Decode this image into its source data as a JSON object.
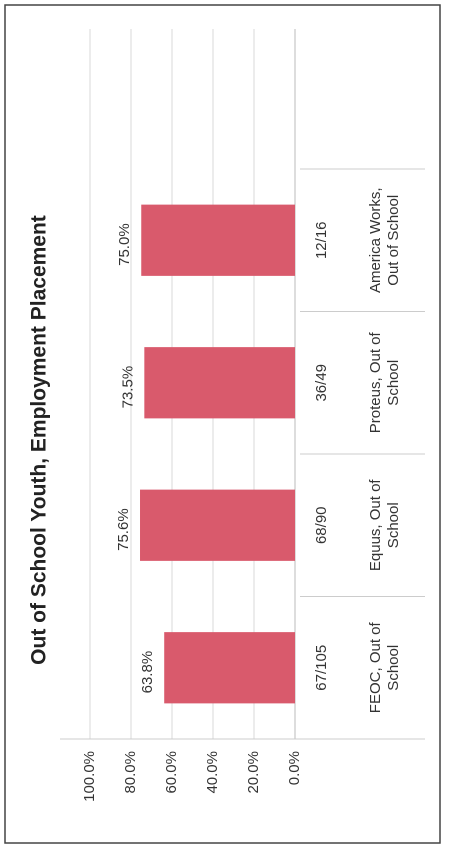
{
  "chart_data": {
    "type": "bar",
    "title": "Out of School Youth, Employment Placement",
    "categories": [
      "FEOC, Out of School",
      "Equus, Out of School",
      "Proteus, Out of School",
      "America Works, Out of School"
    ],
    "counts": [
      "67/105",
      "68/90",
      "36/49",
      "12/16"
    ],
    "values": [
      63.8,
      75.6,
      73.5,
      75.0
    ],
    "value_labels": [
      "63.8%",
      "75.6%",
      "73.5%",
      "75.0%"
    ],
    "color": "#d95a6c",
    "ylim": [
      0,
      100
    ],
    "yticks": [
      {
        "value": 0,
        "label": "0.0%"
      },
      {
        "value": 20,
        "label": "20.0%"
      },
      {
        "value": 40,
        "label": "40.0%"
      },
      {
        "value": 60,
        "label": "60.0%"
      },
      {
        "value": 80,
        "label": "80.0%"
      },
      {
        "value": 100,
        "label": "100.0%"
      }
    ],
    "grid": true
  }
}
